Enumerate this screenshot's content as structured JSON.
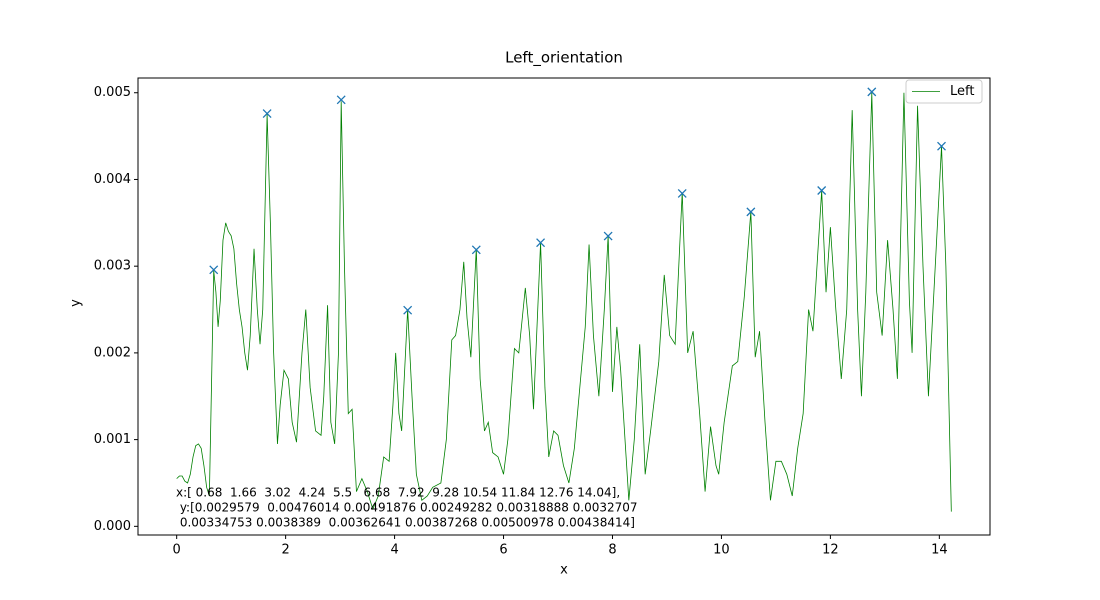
{
  "chart_data": {
    "type": "line",
    "title": "Left_orientation",
    "x_label": "x",
    "y_label": "y",
    "xlim": [
      -0.71,
      14.93
    ],
    "ylim": [
      -0.0001,
      0.00517
    ],
    "xticks": [
      0,
      2,
      4,
      6,
      8,
      10,
      12,
      14
    ],
    "yticks": [
      {
        "value": 0,
        "label": "0.000"
      },
      {
        "value": 0.001,
        "label": "0.001"
      },
      {
        "value": 0.002,
        "label": "0.002"
      },
      {
        "value": 0.003,
        "label": "0.003"
      },
      {
        "value": 0.004,
        "label": "0.004"
      },
      {
        "value": 0.005,
        "label": "0.005"
      }
    ],
    "legend": "upper right",
    "grid": false,
    "series": [
      {
        "name": "Left",
        "color": "#008000",
        "x": [
          0.0,
          0.05,
          0.1,
          0.15,
          0.2,
          0.25,
          0.3,
          0.35,
          0.4,
          0.45,
          0.5,
          0.55,
          0.6,
          0.68,
          0.72,
          0.76,
          0.8,
          0.85,
          0.9,
          0.95,
          1.0,
          1.05,
          1.1,
          1.15,
          1.2,
          1.25,
          1.3,
          1.35,
          1.42,
          1.48,
          1.53,
          1.58,
          1.66,
          1.72,
          1.78,
          1.85,
          1.9,
          1.97,
          2.05,
          2.12,
          2.2,
          2.3,
          2.37,
          2.45,
          2.55,
          2.65,
          2.7,
          2.77,
          2.83,
          2.9,
          2.97,
          3.02,
          3.08,
          3.15,
          3.22,
          3.3,
          3.4,
          3.5,
          3.6,
          3.7,
          3.8,
          3.9,
          3.97,
          4.02,
          4.08,
          4.13,
          4.24,
          4.32,
          4.4,
          4.5,
          4.6,
          4.7,
          4.85,
          4.95,
          5.05,
          5.12,
          5.2,
          5.27,
          5.33,
          5.4,
          5.5,
          5.57,
          5.65,
          5.72,
          5.8,
          5.9,
          6.0,
          6.08,
          6.2,
          6.28,
          6.4,
          6.48,
          6.55,
          6.68,
          6.76,
          6.83,
          6.92,
          7.0,
          7.1,
          7.2,
          7.3,
          7.4,
          7.5,
          7.57,
          7.65,
          7.75,
          7.85,
          7.92,
          8.0,
          8.08,
          8.15,
          8.25,
          8.3,
          8.4,
          8.5,
          8.6,
          8.7,
          8.85,
          8.95,
          9.05,
          9.15,
          9.28,
          9.38,
          9.48,
          9.6,
          9.7,
          9.8,
          9.9,
          9.95,
          10.05,
          10.2,
          10.3,
          10.42,
          10.54,
          10.62,
          10.7,
          10.8,
          10.9,
          11.0,
          11.1,
          11.2,
          11.3,
          11.4,
          11.5,
          11.6,
          11.68,
          11.84,
          11.92,
          12.0,
          12.1,
          12.2,
          12.3,
          12.4,
          12.5,
          12.57,
          12.65,
          12.76,
          12.85,
          12.95,
          13.05,
          13.15,
          13.23,
          13.35,
          13.45,
          13.5,
          13.6,
          13.7,
          13.8,
          13.9,
          14.04,
          14.12,
          14.22
        ],
        "values": [
          0.00055,
          0.00058,
          0.00058,
          0.00052,
          0.0005,
          0.0006,
          0.0008,
          0.00093,
          0.00095,
          0.0009,
          0.0007,
          0.00045,
          0.00035,
          0.00295,
          0.0027,
          0.0023,
          0.0026,
          0.0033,
          0.0035,
          0.0034,
          0.00335,
          0.0032,
          0.0028,
          0.0025,
          0.0023,
          0.002,
          0.0018,
          0.0022,
          0.0032,
          0.0025,
          0.0021,
          0.0025,
          0.00475,
          0.0035,
          0.002,
          0.00095,
          0.0014,
          0.0018,
          0.0017,
          0.0012,
          0.00097,
          0.002,
          0.0025,
          0.0016,
          0.0011,
          0.00105,
          0.0015,
          0.00255,
          0.0012,
          0.00095,
          0.002,
          0.0049,
          0.003,
          0.0013,
          0.00135,
          0.0004,
          0.00055,
          0.0004,
          0.0002,
          0.00035,
          0.0008,
          0.00075,
          0.0014,
          0.002,
          0.0013,
          0.0011,
          0.0025,
          0.0015,
          0.0006,
          0.0003,
          0.00035,
          0.00045,
          0.0005,
          0.001,
          0.00215,
          0.0022,
          0.0025,
          0.00305,
          0.0024,
          0.00195,
          0.0032,
          0.0017,
          0.0011,
          0.0012,
          0.00085,
          0.0008,
          0.0006,
          0.001,
          0.00205,
          0.002,
          0.00275,
          0.0022,
          0.00135,
          0.00327,
          0.0016,
          0.0008,
          0.0011,
          0.00105,
          0.0007,
          0.0005,
          0.0009,
          0.0016,
          0.0023,
          0.00325,
          0.0022,
          0.0015,
          0.0025,
          0.00335,
          0.00155,
          0.0023,
          0.0018,
          0.0008,
          0.0003,
          0.001,
          0.0021,
          0.0006,
          0.0011,
          0.0019,
          0.0029,
          0.0022,
          0.0021,
          0.00385,
          0.002,
          0.00225,
          0.0013,
          0.0004,
          0.00115,
          0.0007,
          0.0006,
          0.0012,
          0.00185,
          0.0019,
          0.00265,
          0.00363,
          0.00195,
          0.00225,
          0.0012,
          0.0003,
          0.00075,
          0.00075,
          0.0006,
          0.00035,
          0.0009,
          0.0013,
          0.0025,
          0.00225,
          0.00387,
          0.0027,
          0.00345,
          0.0025,
          0.0017,
          0.0025,
          0.0048,
          0.0025,
          0.0015,
          0.0027,
          0.005,
          0.0027,
          0.0022,
          0.0033,
          0.0025,
          0.0017,
          0.005,
          0.0026,
          0.002,
          0.00485,
          0.003,
          0.0015,
          0.0027,
          0.00438,
          0.003,
          0.00017
        ]
      }
    ],
    "markers": {
      "color": "#1f77b4",
      "x": [
        0.68,
        1.66,
        3.02,
        4.24,
        5.5,
        6.68,
        7.92,
        9.28,
        10.54,
        11.84,
        12.76,
        14.04
      ],
      "values": [
        0.0029579,
        0.00476014,
        0.00491876,
        0.00249282,
        0.00318888,
        0.0032707,
        0.00334753,
        0.0038389,
        0.00362641,
        0.00387268,
        0.00500978,
        0.00438414
      ]
    },
    "annotations": [
      "x:[ 0.68  1.66  3.02  4.24  5.5   6.68  7.92  9.28 10.54 11.84 12.76 14.04],",
      " y:[0.0029579  0.00476014 0.00491876 0.00249282 0.00318888 0.0032707",
      " 0.00334753 0.0038389  0.00362641 0.00387268 0.00500978 0.00438414]"
    ]
  }
}
